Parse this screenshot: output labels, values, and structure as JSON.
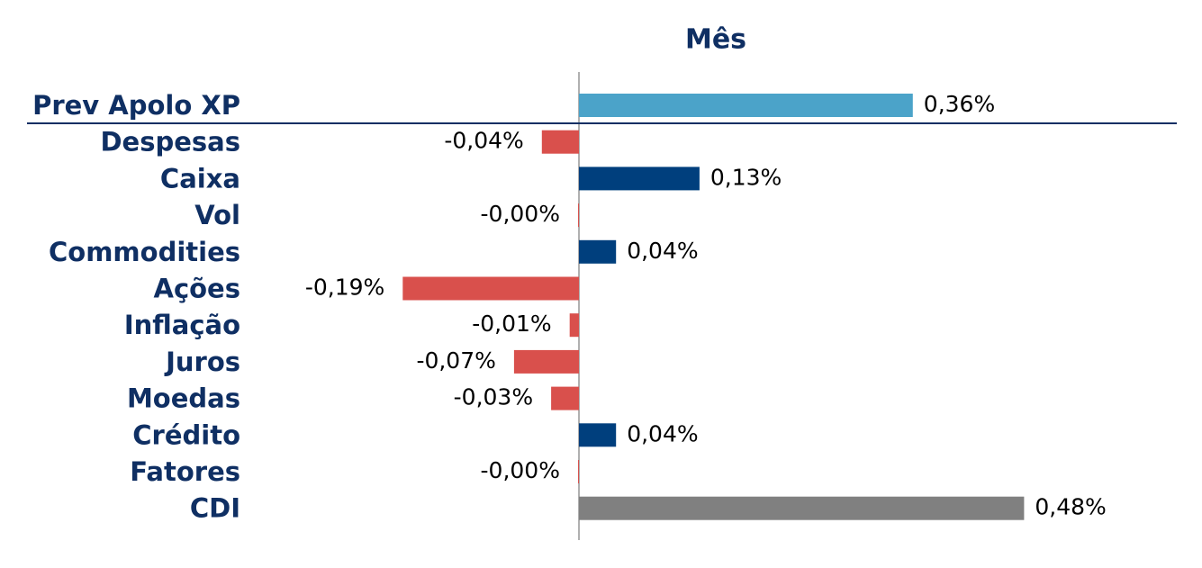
{
  "chart_data": {
    "type": "hbar",
    "title": "Mês",
    "categories": [
      "Prev Apolo XP",
      "Despesas",
      "Caixa",
      "Vol",
      "Commodities",
      "Ações",
      "Inflação",
      "Juros",
      "Moedas",
      "Crédito",
      "Fatores",
      "CDI"
    ],
    "values": [
      0.36,
      -0.04,
      0.13,
      -0.001,
      0.04,
      -0.19,
      -0.01,
      -0.07,
      -0.03,
      0.04,
      -0.001,
      0.48
    ],
    "value_labels": [
      "0,36%",
      "-0,04%",
      "0,13%",
      "-0,00%",
      "0,04%",
      "-0,19%",
      "-0,01%",
      "-0,07%",
      "-0,03%",
      "0,04%",
      "-0,00%",
      "0,48%"
    ],
    "colors": [
      "#4ba3c9",
      "#d9504c",
      "#003f7d",
      "#d9504c",
      "#003f7d",
      "#d9504c",
      "#d9504c",
      "#d9504c",
      "#d9504c",
      "#003f7d",
      "#d9504c",
      "#808080"
    ],
    "xlim": [
      -0.2,
      0.5
    ]
  }
}
